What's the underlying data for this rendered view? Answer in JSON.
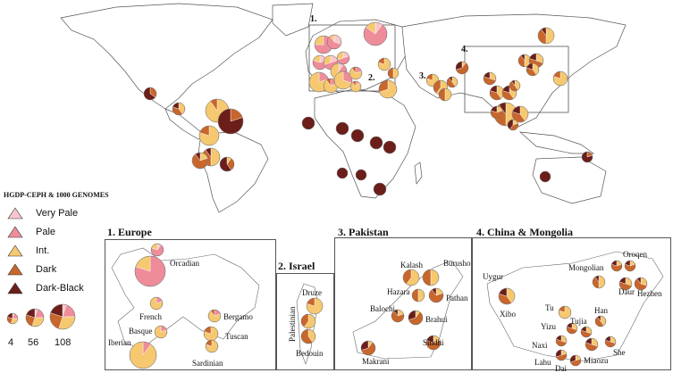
{
  "legend": {
    "title": "HGDP-CEPH & 1000 GENOMES",
    "items": [
      {
        "label": "Very Pale",
        "color": "#f7c6cc"
      },
      {
        "label": "Pale",
        "color": "#ef8c9a"
      },
      {
        "label": "Int.",
        "color": "#f6c870"
      },
      {
        "label": "Dark",
        "color": "#c8662c"
      },
      {
        "label": "Dark-Black",
        "color": "#6b1e1a"
      }
    ],
    "sizes": [
      "4",
      "56",
      "108"
    ]
  },
  "map_region_labels": [
    "1.",
    "2.",
    "3.",
    "4."
  ],
  "insets": {
    "europe": {
      "title": "1. Europe",
      "populations": [
        "Orcadian",
        "French",
        "Bergamo",
        "Basque",
        "Tuscan",
        "Iberian",
        "Sardinian"
      ]
    },
    "israel": {
      "title": "2. Israel",
      "populations": [
        "Druze",
        "Palestinian",
        "Bedouin"
      ]
    },
    "pakistan": {
      "title": "3. Pakistan",
      "populations": [
        "Kalash",
        "Burusho",
        "Hazara",
        "Pathan",
        "Balochi",
        "Brahui",
        "Sindhi",
        "Makrani"
      ]
    },
    "china": {
      "title": "4. China & Mongolia",
      "populations": [
        "Oroqen",
        "Mongolian",
        "Uygur",
        "Daur",
        "Hezhen",
        "Xibo",
        "Tu",
        "Han",
        "Yizu",
        "Tujia",
        "Naxi",
        "She",
        "Miaozu",
        "Lahu",
        "Dai"
      ]
    }
  }
}
